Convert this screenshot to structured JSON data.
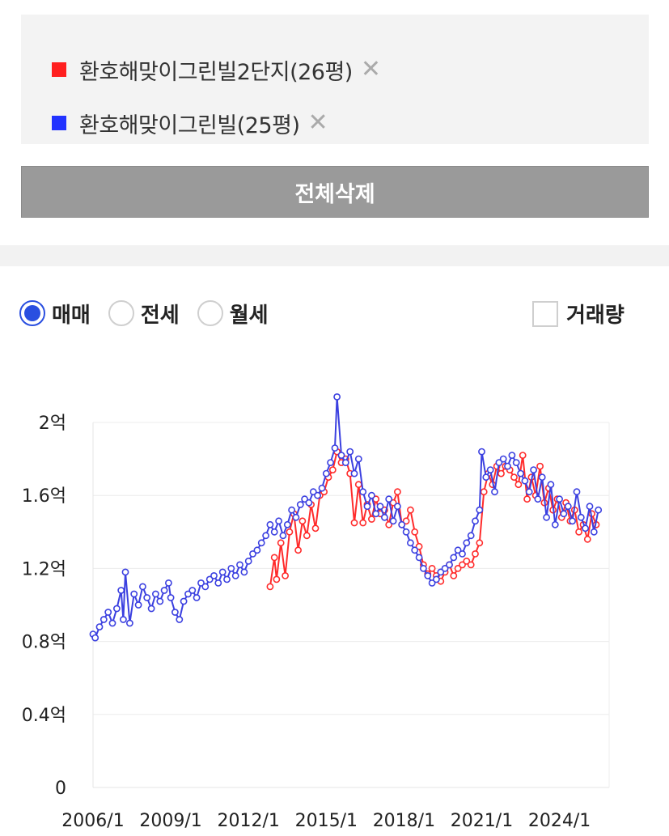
{
  "compare": {
    "items": [
      {
        "label": "환호해맞이그린빌2단지(26평)",
        "color": "#ff1f1f"
      },
      {
        "label": "환호해맞이그린빌(25평)",
        "color": "#2233ff"
      }
    ],
    "remove_icon": "close-icon"
  },
  "delete_all_label": "전체삭제",
  "tabs": [
    {
      "label": "매매",
      "selected": true
    },
    {
      "label": "전세",
      "selected": false
    },
    {
      "label": "월세",
      "selected": false
    }
  ],
  "volume_label": "거래량",
  "volume_checked": false,
  "chart_data": {
    "type": "line",
    "y_ticks": [
      "0",
      "0.4억",
      "0.8억",
      "1.2억",
      "1.6억",
      "2억"
    ],
    "x_ticks": [
      "2006/1",
      "2009/1",
      "2012/1",
      "2015/1",
      "2018/1",
      "2021/1",
      "2024/1"
    ],
    "ylim": [
      0,
      2
    ],
    "grid": true,
    "legend": "none",
    "series": [
      {
        "name": "환호해맞이그린빌2단지(26평)",
        "color": "#ff2b2b",
        "points": [
          [
            "2012/11",
            1.1
          ],
          [
            "2013/1",
            1.26
          ],
          [
            "2013/2",
            1.14
          ],
          [
            "2013/4",
            1.34
          ],
          [
            "2013/6",
            1.16
          ],
          [
            "2013/8",
            1.4
          ],
          [
            "2013/10",
            1.5
          ],
          [
            "2013/12",
            1.3
          ],
          [
            "2014/2",
            1.46
          ],
          [
            "2014/4",
            1.38
          ],
          [
            "2014/6",
            1.55
          ],
          [
            "2014/8",
            1.42
          ],
          [
            "2014/10",
            1.6
          ],
          [
            "2014/12",
            1.62
          ],
          [
            "2015/2",
            1.7
          ],
          [
            "2015/4",
            1.74
          ],
          [
            "2015/6",
            1.84
          ],
          [
            "2015/8",
            1.78
          ],
          [
            "2015/10",
            1.8
          ],
          [
            "2015/12",
            1.72
          ],
          [
            "2016/2",
            1.45
          ],
          [
            "2016/4",
            1.66
          ],
          [
            "2016/6",
            1.45
          ],
          [
            "2016/8",
            1.55
          ],
          [
            "2016/10",
            1.47
          ],
          [
            "2016/12",
            1.58
          ],
          [
            "2017/2",
            1.5
          ],
          [
            "2017/4",
            1.52
          ],
          [
            "2017/6",
            1.44
          ],
          [
            "2017/8",
            1.56
          ],
          [
            "2017/10",
            1.62
          ],
          [
            "2017/12",
            1.44
          ],
          [
            "2018/2",
            1.46
          ],
          [
            "2018/4",
            1.52
          ],
          [
            "2018/6",
            1.4
          ],
          [
            "2018/8",
            1.32
          ],
          [
            "2018/10",
            1.22
          ],
          [
            "2018/12",
            1.17
          ],
          [
            "2019/2",
            1.2
          ],
          [
            "2019/4",
            1.16
          ],
          [
            "2019/6",
            1.13
          ],
          [
            "2019/8",
            1.18
          ],
          [
            "2019/10",
            1.22
          ],
          [
            "2019/12",
            1.16
          ],
          [
            "2020/2",
            1.2
          ],
          [
            "2020/4",
            1.22
          ],
          [
            "2020/6",
            1.24
          ],
          [
            "2020/8",
            1.22
          ],
          [
            "2020/10",
            1.28
          ],
          [
            "2020/12",
            1.34
          ],
          [
            "2021/2",
            1.62
          ],
          [
            "2021/4",
            1.72
          ],
          [
            "2021/6",
            1.66
          ],
          [
            "2021/8",
            1.76
          ],
          [
            "2021/10",
            1.72
          ],
          [
            "2021/12",
            1.76
          ],
          [
            "2022/2",
            1.74
          ],
          [
            "2022/4",
            1.7
          ],
          [
            "2022/6",
            1.66
          ],
          [
            "2022/8",
            1.82
          ],
          [
            "2022/10",
            1.58
          ],
          [
            "2022/12",
            1.7
          ],
          [
            "2023/2",
            1.6
          ],
          [
            "2023/4",
            1.76
          ],
          [
            "2023/6",
            1.56
          ],
          [
            "2023/8",
            1.64
          ],
          [
            "2023/10",
            1.52
          ],
          [
            "2023/12",
            1.58
          ],
          [
            "2024/2",
            1.48
          ],
          [
            "2024/4",
            1.56
          ],
          [
            "2024/6",
            1.46
          ],
          [
            "2024/8",
            1.52
          ],
          [
            "2024/10",
            1.4
          ],
          [
            "2024/12",
            1.44
          ],
          [
            "2025/2",
            1.36
          ],
          [
            "2025/4",
            1.5
          ],
          [
            "2025/6",
            1.44
          ]
        ]
      },
      {
        "name": "환호해맞이그린빌(25평)",
        "color": "#3b40e0",
        "points": [
          [
            "2006/1",
            0.84
          ],
          [
            "2006/2",
            0.82
          ],
          [
            "2006/4",
            0.88
          ],
          [
            "2006/6",
            0.92
          ],
          [
            "2006/8",
            0.96
          ],
          [
            "2006/10",
            0.9
          ],
          [
            "2006/12",
            0.98
          ],
          [
            "2007/2",
            1.08
          ],
          [
            "2007/3",
            0.92
          ],
          [
            "2007/4",
            1.18
          ],
          [
            "2007/6",
            0.9
          ],
          [
            "2007/8",
            1.06
          ],
          [
            "2007/10",
            1.0
          ],
          [
            "2007/12",
            1.1
          ],
          [
            "2008/2",
            1.04
          ],
          [
            "2008/4",
            0.98
          ],
          [
            "2008/6",
            1.06
          ],
          [
            "2008/8",
            1.02
          ],
          [
            "2008/10",
            1.08
          ],
          [
            "2008/12",
            1.12
          ],
          [
            "2009/1",
            1.04
          ],
          [
            "2009/3",
            0.96
          ],
          [
            "2009/5",
            0.92
          ],
          [
            "2009/7",
            1.02
          ],
          [
            "2009/9",
            1.06
          ],
          [
            "2009/11",
            1.08
          ],
          [
            "2010/1",
            1.04
          ],
          [
            "2010/3",
            1.12
          ],
          [
            "2010/5",
            1.1
          ],
          [
            "2010/7",
            1.14
          ],
          [
            "2010/9",
            1.16
          ],
          [
            "2010/11",
            1.12
          ],
          [
            "2011/1",
            1.18
          ],
          [
            "2011/3",
            1.14
          ],
          [
            "2011/5",
            1.2
          ],
          [
            "2011/7",
            1.16
          ],
          [
            "2011/9",
            1.22
          ],
          [
            "2011/11",
            1.18
          ],
          [
            "2012/1",
            1.24
          ],
          [
            "2012/3",
            1.28
          ],
          [
            "2012/5",
            1.3
          ],
          [
            "2012/7",
            1.34
          ],
          [
            "2012/9",
            1.38
          ],
          [
            "2012/11",
            1.44
          ],
          [
            "2013/1",
            1.4
          ],
          [
            "2013/3",
            1.46
          ],
          [
            "2013/5",
            1.38
          ],
          [
            "2013/7",
            1.44
          ],
          [
            "2013/9",
            1.52
          ],
          [
            "2013/11",
            1.48
          ],
          [
            "2014/1",
            1.55
          ],
          [
            "2014/3",
            1.58
          ],
          [
            "2014/5",
            1.56
          ],
          [
            "2014/7",
            1.62
          ],
          [
            "2014/9",
            1.6
          ],
          [
            "2014/11",
            1.64
          ],
          [
            "2015/1",
            1.72
          ],
          [
            "2015/3",
            1.78
          ],
          [
            "2015/5",
            1.86
          ],
          [
            "2015/6",
            2.14
          ],
          [
            "2015/8",
            1.82
          ],
          [
            "2015/10",
            1.78
          ],
          [
            "2015/12",
            1.84
          ],
          [
            "2016/2",
            1.72
          ],
          [
            "2016/4",
            1.8
          ],
          [
            "2016/6",
            1.62
          ],
          [
            "2016/8",
            1.54
          ],
          [
            "2016/10",
            1.6
          ],
          [
            "2016/12",
            1.5
          ],
          [
            "2017/2",
            1.54
          ],
          [
            "2017/4",
            1.48
          ],
          [
            "2017/6",
            1.58
          ],
          [
            "2017/8",
            1.46
          ],
          [
            "2017/10",
            1.54
          ],
          [
            "2017/12",
            1.44
          ],
          [
            "2018/2",
            1.4
          ],
          [
            "2018/4",
            1.34
          ],
          [
            "2018/6",
            1.3
          ],
          [
            "2018/8",
            1.26
          ],
          [
            "2018/10",
            1.2
          ],
          [
            "2018/12",
            1.16
          ],
          [
            "2019/2",
            1.12
          ],
          [
            "2019/4",
            1.14
          ],
          [
            "2019/6",
            1.18
          ],
          [
            "2019/8",
            1.2
          ],
          [
            "2019/10",
            1.22
          ],
          [
            "2019/12",
            1.26
          ],
          [
            "2020/2",
            1.3
          ],
          [
            "2020/4",
            1.28
          ],
          [
            "2020/6",
            1.34
          ],
          [
            "2020/8",
            1.38
          ],
          [
            "2020/10",
            1.46
          ],
          [
            "2020/12",
            1.52
          ],
          [
            "2021/1",
            1.84
          ],
          [
            "2021/3",
            1.7
          ],
          [
            "2021/5",
            1.74
          ],
          [
            "2021/7",
            1.62
          ],
          [
            "2021/9",
            1.78
          ],
          [
            "2021/11",
            1.8
          ],
          [
            "2022/1",
            1.76
          ],
          [
            "2022/3",
            1.82
          ],
          [
            "2022/5",
            1.78
          ],
          [
            "2022/7",
            1.72
          ],
          [
            "2022/9",
            1.68
          ],
          [
            "2022/11",
            1.62
          ],
          [
            "2023/1",
            1.74
          ],
          [
            "2023/3",
            1.58
          ],
          [
            "2023/5",
            1.7
          ],
          [
            "2023/7",
            1.48
          ],
          [
            "2023/9",
            1.66
          ],
          [
            "2023/11",
            1.44
          ],
          [
            "2024/1",
            1.58
          ],
          [
            "2024/3",
            1.5
          ],
          [
            "2024/5",
            1.54
          ],
          [
            "2024/7",
            1.46
          ],
          [
            "2024/9",
            1.62
          ],
          [
            "2024/11",
            1.48
          ],
          [
            "2025/1",
            1.42
          ],
          [
            "2025/3",
            1.54
          ],
          [
            "2025/5",
            1.4
          ],
          [
            "2025/7",
            1.52
          ]
        ]
      }
    ]
  }
}
